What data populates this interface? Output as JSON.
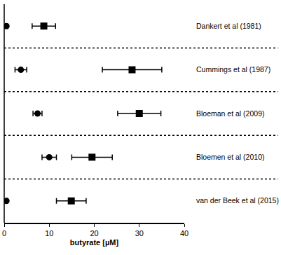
{
  "chart_data": {
    "type": "scatter",
    "orientation": "horizontal",
    "x_label": "butyrate [µM]",
    "categories": [
      "Dankert et al (1981)",
      "Cummings et al (1987)",
      "Bloeman et al (2009)",
      "Bloemen et al (2010)",
      "van der Beek et al (2015)"
    ],
    "series": [
      {
        "marker": "circle",
        "color": "#000000",
        "values": [
          0.5,
          3.7,
          7.4,
          10.0,
          0.5
        ],
        "error": [
          0.2,
          1.3,
          1.0,
          1.6,
          0.2
        ]
      },
      {
        "marker": "square",
        "color": "#000000",
        "values": [
          8.8,
          28.4,
          30.0,
          19.5,
          14.9
        ],
        "error": [
          2.6,
          6.6,
          4.8,
          4.5,
          3.3
        ]
      }
    ],
    "xlim": [
      0,
      40
    ],
    "xticks": [
      0,
      10,
      20,
      30,
      40
    ],
    "grid": false
  }
}
